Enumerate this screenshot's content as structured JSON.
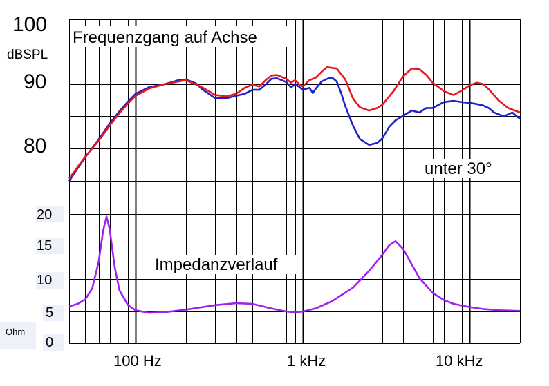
{
  "chart_data": [
    {
      "type": "line",
      "title": "Frequenzgang auf Achse",
      "ylabel": "dBSPL",
      "xscale": "log",
      "xlim": [
        40,
        20000
      ],
      "ylim": [
        65,
        100
      ],
      "yticks": [
        {
          "value": 100,
          "label": "100"
        },
        {
          "value": 90,
          "label": "90"
        },
        {
          "value": 80,
          "label": "80"
        }
      ],
      "annotation": "unter 30°",
      "series": [
        {
          "name": "auf Achse",
          "color": "#e8171c",
          "points": [
            [
              40,
              75.4
            ],
            [
              45,
              77.2
            ],
            [
              50,
              78.8
            ],
            [
              60,
              81.2
            ],
            [
              70,
              83.6
            ],
            [
              80,
              85.5
            ],
            [
              90,
              87.0
            ],
            [
              100,
              88.2
            ],
            [
              120,
              89.3
            ],
            [
              150,
              90.0
            ],
            [
              200,
              90.6
            ],
            [
              250,
              89.5
            ],
            [
              300,
              88.3
            ],
            [
              350,
              88.1
            ],
            [
              400,
              88.5
            ],
            [
              450,
              89.4
            ],
            [
              500,
              89.9
            ],
            [
              550,
              89.6
            ],
            [
              600,
              90.6
            ],
            [
              650,
              91.3
            ],
            [
              700,
              91.4
            ],
            [
              800,
              90.8
            ],
            [
              850,
              90.2
            ],
            [
              900,
              90.6
            ],
            [
              950,
              90.0
            ],
            [
              1000,
              89.6
            ],
            [
              1100,
              90.6
            ],
            [
              1200,
              91.0
            ],
            [
              1300,
              91.9
            ],
            [
              1400,
              92.6
            ],
            [
              1600,
              92.4
            ],
            [
              1800,
              90.7
            ],
            [
              2000,
              87.8
            ],
            [
              2200,
              86.4
            ],
            [
              2500,
              85.9
            ],
            [
              2800,
              86.3
            ],
            [
              3000,
              86.8
            ],
            [
              3500,
              88.9
            ],
            [
              4000,
              91.2
            ],
            [
              4500,
              92.4
            ],
            [
              5000,
              92.3
            ],
            [
              5500,
              91.4
            ],
            [
              6000,
              90.2
            ],
            [
              7000,
              88.9
            ],
            [
              8000,
              88.3
            ],
            [
              9000,
              89.0
            ],
            [
              10000,
              89.8
            ],
            [
              11000,
              90.2
            ],
            [
              12000,
              90.0
            ],
            [
              13000,
              89.2
            ],
            [
              15000,
              87.4
            ],
            [
              17000,
              86.3
            ],
            [
              20000,
              85.6
            ]
          ]
        },
        {
          "name": "unter 30°",
          "color": "#1f22c9",
          "points": [
            [
              40,
              75.0
            ],
            [
              45,
              77.0
            ],
            [
              50,
              78.7
            ],
            [
              60,
              81.4
            ],
            [
              70,
              83.9
            ],
            [
              80,
              85.8
            ],
            [
              90,
              87.3
            ],
            [
              100,
              88.5
            ],
            [
              120,
              89.5
            ],
            [
              150,
              90.0
            ],
            [
              180,
              90.6
            ],
            [
              200,
              90.7
            ],
            [
              230,
              90.1
            ],
            [
              250,
              89.2
            ],
            [
              300,
              87.8
            ],
            [
              350,
              87.8
            ],
            [
              400,
              88.2
            ],
            [
              450,
              88.5
            ],
            [
              500,
              89.1
            ],
            [
              550,
              89.1
            ],
            [
              600,
              89.9
            ],
            [
              650,
              90.8
            ],
            [
              700,
              90.9
            ],
            [
              800,
              90.3
            ],
            [
              850,
              89.5
            ],
            [
              900,
              89.9
            ],
            [
              950,
              89.6
            ],
            [
              1000,
              89.1
            ],
            [
              1100,
              89.4
            ],
            [
              1150,
              88.6
            ],
            [
              1200,
              89.3
            ],
            [
              1300,
              90.4
            ],
            [
              1400,
              90.8
            ],
            [
              1500,
              91.0
            ],
            [
              1600,
              90.4
            ],
            [
              1700,
              88.6
            ],
            [
              1800,
              86.6
            ],
            [
              2000,
              83.6
            ],
            [
              2200,
              81.5
            ],
            [
              2500,
              80.6
            ],
            [
              2800,
              80.9
            ],
            [
              3000,
              81.6
            ],
            [
              3300,
              83.4
            ],
            [
              3600,
              84.4
            ],
            [
              4000,
              85.1
            ],
            [
              4500,
              85.9
            ],
            [
              5000,
              85.6
            ],
            [
              5500,
              86.3
            ],
            [
              6000,
              86.3
            ],
            [
              7000,
              87.2
            ],
            [
              8000,
              87.4
            ],
            [
              9000,
              87.2
            ],
            [
              10000,
              87.1
            ],
            [
              11000,
              86.9
            ],
            [
              12000,
              86.7
            ],
            [
              13000,
              86.3
            ],
            [
              14000,
              85.6
            ],
            [
              16000,
              85.0
            ],
            [
              18000,
              85.6
            ],
            [
              20000,
              84.6
            ]
          ]
        }
      ]
    },
    {
      "type": "line",
      "title": "Impedanzverlauf",
      "ylabel": "Ohm",
      "xscale": "log",
      "xlim": [
        40,
        20000
      ],
      "ylim": [
        0,
        20
      ],
      "yticks": [
        {
          "value": 20,
          "label": "20"
        },
        {
          "value": 15,
          "label": "15"
        },
        {
          "value": 10,
          "label": "10"
        },
        {
          "value": 5,
          "label": "5"
        },
        {
          "value": 0,
          "label": "0"
        }
      ],
      "series": [
        {
          "name": "Impedanz",
          "color": "#a020f0",
          "points": [
            [
              40,
              5.7
            ],
            [
              45,
              6.1
            ],
            [
              50,
              6.8
            ],
            [
              55,
              8.5
            ],
            [
              60,
              12.5
            ],
            [
              64,
              17.5
            ],
            [
              67,
              19.6
            ],
            [
              70,
              17.6
            ],
            [
              75,
              11.8
            ],
            [
              80,
              8.2
            ],
            [
              90,
              5.9
            ],
            [
              100,
              5.1
            ],
            [
              120,
              4.7
            ],
            [
              150,
              4.8
            ],
            [
              200,
              5.2
            ],
            [
              300,
              5.9
            ],
            [
              400,
              6.2
            ],
            [
              500,
              6.1
            ],
            [
              600,
              5.6
            ],
            [
              700,
              5.2
            ],
            [
              800,
              4.9
            ],
            [
              900,
              4.8
            ],
            [
              1000,
              4.9
            ],
            [
              1200,
              5.4
            ],
            [
              1500,
              6.5
            ],
            [
              2000,
              8.6
            ],
            [
              2500,
              11.2
            ],
            [
              3000,
              13.7
            ],
            [
              3300,
              15.2
            ],
            [
              3600,
              15.8
            ],
            [
              4000,
              14.6
            ],
            [
              4500,
              12.2
            ],
            [
              5000,
              10.1
            ],
            [
              6000,
              7.8
            ],
            [
              7000,
              6.7
            ],
            [
              8000,
              6.1
            ],
            [
              10000,
              5.6
            ],
            [
              12000,
              5.3
            ],
            [
              15000,
              5.1
            ],
            [
              20000,
              5.0
            ]
          ]
        }
      ]
    }
  ],
  "xaxis": {
    "tick_labels": [
      {
        "freq": 100,
        "label": "100 Hz"
      },
      {
        "freq": 1000,
        "label": "1 kHz"
      },
      {
        "freq": 10000,
        "label": "10 kHz"
      }
    ]
  }
}
